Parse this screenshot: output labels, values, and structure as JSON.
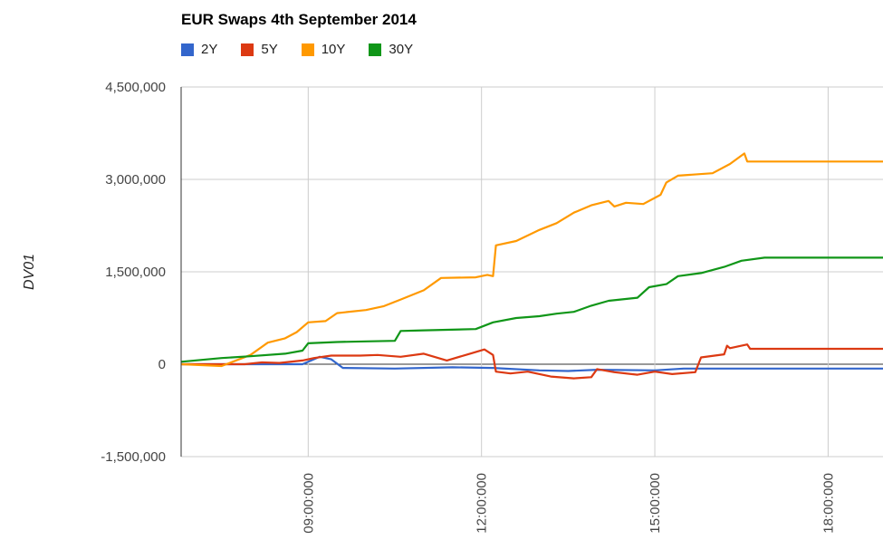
{
  "chart_data": {
    "type": "line",
    "title": "EUR Swaps 4th September 2014",
    "xlabel": "",
    "ylabel": "DV01",
    "ylim": [
      -1500000,
      4500000
    ],
    "yticks": [
      {
        "value": -1500000,
        "label": "-1,500,000"
      },
      {
        "value": 0,
        "label": "0"
      },
      {
        "value": 1500000,
        "label": "1,500,000"
      },
      {
        "value": 3000000,
        "label": "3,000,000"
      },
      {
        "value": 4500000,
        "label": "4,500,000"
      }
    ],
    "xlim": [
      6.8,
      18.95
    ],
    "xticks": [
      {
        "value": 9,
        "label": "09:00:000"
      },
      {
        "value": 12,
        "label": "12:00:000"
      },
      {
        "value": 15,
        "label": "15:00:000"
      },
      {
        "value": 18,
        "label": "18:00:000"
      }
    ],
    "grid": true,
    "legend_position": "top-left",
    "series": [
      {
        "name": "2Y",
        "color": "#3366cc",
        "points": [
          [
            6.8,
            0
          ],
          [
            8.9,
            0
          ],
          [
            9.2,
            120000
          ],
          [
            9.4,
            80000
          ],
          [
            9.6,
            -60000
          ],
          [
            10.5,
            -70000
          ],
          [
            11.5,
            -50000
          ],
          [
            12.2,
            -60000
          ],
          [
            13.0,
            -100000
          ],
          [
            13.5,
            -110000
          ],
          [
            14.0,
            -90000
          ],
          [
            15.0,
            -100000
          ],
          [
            15.5,
            -70000
          ],
          [
            16.5,
            -70000
          ],
          [
            18.95,
            -70000
          ]
        ]
      },
      {
        "name": "5Y",
        "color": "#dc3912",
        "points": [
          [
            6.8,
            0
          ],
          [
            7.9,
            0
          ],
          [
            8.2,
            30000
          ],
          [
            8.5,
            20000
          ],
          [
            8.9,
            60000
          ],
          [
            9.1,
            100000
          ],
          [
            9.4,
            140000
          ],
          [
            9.9,
            140000
          ],
          [
            10.2,
            150000
          ],
          [
            10.6,
            120000
          ],
          [
            11.0,
            170000
          ],
          [
            11.4,
            60000
          ],
          [
            11.8,
            170000
          ],
          [
            12.05,
            240000
          ],
          [
            12.2,
            150000
          ],
          [
            12.25,
            -120000
          ],
          [
            12.5,
            -150000
          ],
          [
            12.8,
            -120000
          ],
          [
            13.2,
            -200000
          ],
          [
            13.6,
            -230000
          ],
          [
            13.9,
            -210000
          ],
          [
            14.0,
            -80000
          ],
          [
            14.3,
            -130000
          ],
          [
            14.7,
            -170000
          ],
          [
            15.0,
            -120000
          ],
          [
            15.3,
            -160000
          ],
          [
            15.7,
            -130000
          ],
          [
            15.8,
            110000
          ],
          [
            16.2,
            160000
          ],
          [
            16.25,
            300000
          ],
          [
            16.3,
            260000
          ],
          [
            16.6,
            320000
          ],
          [
            16.65,
            250000
          ],
          [
            18.95,
            250000
          ]
        ]
      },
      {
        "name": "10Y",
        "color": "#ff9900",
        "points": [
          [
            6.8,
            0
          ],
          [
            7.5,
            -30000
          ],
          [
            8.0,
            150000
          ],
          [
            8.3,
            350000
          ],
          [
            8.6,
            420000
          ],
          [
            8.8,
            520000
          ],
          [
            9.0,
            680000
          ],
          [
            9.3,
            700000
          ],
          [
            9.5,
            830000
          ],
          [
            10.0,
            880000
          ],
          [
            10.3,
            940000
          ],
          [
            10.6,
            1050000
          ],
          [
            11.0,
            1200000
          ],
          [
            11.3,
            1400000
          ],
          [
            11.9,
            1410000
          ],
          [
            12.1,
            1450000
          ],
          [
            12.2,
            1430000
          ],
          [
            12.25,
            1930000
          ],
          [
            12.6,
            2000000
          ],
          [
            13.0,
            2180000
          ],
          [
            13.3,
            2290000
          ],
          [
            13.6,
            2460000
          ],
          [
            13.9,
            2580000
          ],
          [
            14.2,
            2650000
          ],
          [
            14.3,
            2560000
          ],
          [
            14.5,
            2620000
          ],
          [
            14.8,
            2600000
          ],
          [
            15.1,
            2750000
          ],
          [
            15.2,
            2950000
          ],
          [
            15.4,
            3060000
          ],
          [
            16.0,
            3100000
          ],
          [
            16.3,
            3250000
          ],
          [
            16.55,
            3420000
          ],
          [
            16.6,
            3290000
          ],
          [
            18.95,
            3290000
          ]
        ]
      },
      {
        "name": "30Y",
        "color": "#109618",
        "points": [
          [
            6.8,
            40000
          ],
          [
            7.5,
            100000
          ],
          [
            8.0,
            130000
          ],
          [
            8.6,
            170000
          ],
          [
            8.9,
            220000
          ],
          [
            9.0,
            340000
          ],
          [
            9.5,
            360000
          ],
          [
            10.0,
            370000
          ],
          [
            10.5,
            380000
          ],
          [
            10.6,
            540000
          ],
          [
            11.0,
            550000
          ],
          [
            11.9,
            570000
          ],
          [
            12.2,
            680000
          ],
          [
            12.6,
            750000
          ],
          [
            13.0,
            780000
          ],
          [
            13.3,
            820000
          ],
          [
            13.6,
            850000
          ],
          [
            13.9,
            950000
          ],
          [
            14.2,
            1030000
          ],
          [
            14.7,
            1080000
          ],
          [
            14.9,
            1250000
          ],
          [
            15.2,
            1300000
          ],
          [
            15.4,
            1430000
          ],
          [
            15.8,
            1480000
          ],
          [
            16.2,
            1580000
          ],
          [
            16.5,
            1680000
          ],
          [
            16.9,
            1730000
          ],
          [
            18.95,
            1730000
          ]
        ]
      }
    ]
  }
}
